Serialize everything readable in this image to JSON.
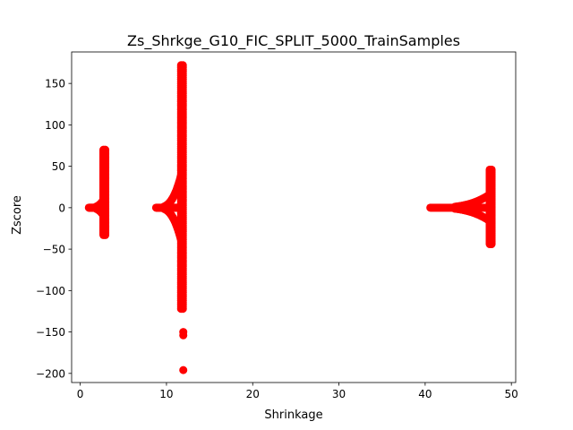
{
  "chart_data": {
    "type": "scatter",
    "title": "Zs_Shrkge_G10_FIC_SPLIT_5000_TrainSamples",
    "xlabel": "Shrinkage",
    "ylabel": "Zscore",
    "xlim": [
      -1.0,
      50.5
    ],
    "ylim": [
      -211,
      188
    ],
    "xticks": [
      0,
      10,
      20,
      30,
      40,
      50
    ],
    "yticks": [
      -200,
      -150,
      -100,
      -50,
      0,
      50,
      100,
      150
    ],
    "xtick_labels": [
      "0",
      "10",
      "20",
      "30",
      "40",
      "50"
    ],
    "ytick_labels": [
      "−200",
      "−150",
      "−100",
      "−50",
      "0",
      "50",
      "100",
      "150"
    ],
    "grid": false,
    "marker_color": "#ff0000",
    "clusters": [
      {
        "x_start": 1.0,
        "x_spike": 2.9,
        "y_min": -33,
        "y_max": 70
      },
      {
        "x_start": 8.8,
        "x_spike": 11.9,
        "y_min": -122,
        "y_max": 172
      },
      {
        "x_start": 40.6,
        "x_spike": 47.7,
        "y_min": -44,
        "y_max": 46
      }
    ],
    "outliers": [
      {
        "x": 11.95,
        "y": -150
      },
      {
        "x": 11.95,
        "y": -154
      },
      {
        "x": 11.95,
        "y": -196
      }
    ]
  }
}
